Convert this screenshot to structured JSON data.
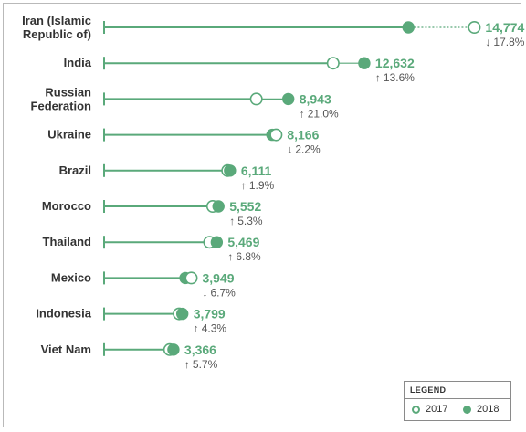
{
  "chart_data": {
    "type": "dumbbell",
    "series": [
      {
        "name": "2017"
      },
      {
        "name": "2018"
      }
    ],
    "rows": [
      {
        "label_lines": [
          "Iran (Islamic",
          "Republic of)"
        ],
        "value_2018": 14774,
        "value_2017": 17975,
        "value_label": "14,774",
        "change_direction": "down",
        "change_arrow": "↓",
        "change_text": "17.8%"
      },
      {
        "label_lines": [
          "India"
        ],
        "value_2018": 12632,
        "value_2017": 11120,
        "value_label": "12,632",
        "change_direction": "up",
        "change_arrow": "↑",
        "change_text": "13.6%"
      },
      {
        "label_lines": [
          "Russian",
          "Federation"
        ],
        "value_2018": 8943,
        "value_2017": 7390,
        "value_label": "8,943",
        "change_direction": "up",
        "change_arrow": "↑",
        "change_text": "21.0%"
      },
      {
        "label_lines": [
          "Ukraine"
        ],
        "value_2018": 8166,
        "value_2017": 8350,
        "value_label": "8,166",
        "change_direction": "down",
        "change_arrow": "↓",
        "change_text": "2.2%"
      },
      {
        "label_lines": [
          "Brazil"
        ],
        "value_2018": 6111,
        "value_2017": 5997,
        "value_label": "6,111",
        "change_direction": "up",
        "change_arrow": "↑",
        "change_text": "1.9%"
      },
      {
        "label_lines": [
          "Morocco"
        ],
        "value_2018": 5552,
        "value_2017": 5273,
        "value_label": "5,552",
        "change_direction": "up",
        "change_arrow": "↑",
        "change_text": "5.3%"
      },
      {
        "label_lines": [
          "Thailand"
        ],
        "value_2018": 5469,
        "value_2017": 5121,
        "value_label": "5,469",
        "change_direction": "up",
        "change_arrow": "↑",
        "change_text": "6.8%"
      },
      {
        "label_lines": [
          "Mexico"
        ],
        "value_2018": 3949,
        "value_2017": 4233,
        "value_label": "3,949",
        "change_direction": "down",
        "change_arrow": "↓",
        "change_text": "6.7%"
      },
      {
        "label_lines": [
          "Indonesia"
        ],
        "value_2018": 3799,
        "value_2017": 3642,
        "value_label": "3,799",
        "change_direction": "up",
        "change_arrow": "↑",
        "change_text": "4.3%"
      },
      {
        "label_lines": [
          "Viet Nam"
        ],
        "value_2018": 3366,
        "value_2017": 3185,
        "value_label": "3,366",
        "change_direction": "up",
        "change_arrow": "↑",
        "change_text": "5.7%"
      }
    ],
    "xlim": [
      0,
      18000
    ],
    "legend_position": "bottom-right",
    "colors": {
      "accent": "#5aa97a",
      "text": "#333333",
      "change_text": "#555555",
      "frame": "#b9b9b9"
    }
  },
  "legend": {
    "title": "LEGEND",
    "open_label": "2017",
    "filled_label": "2018"
  }
}
